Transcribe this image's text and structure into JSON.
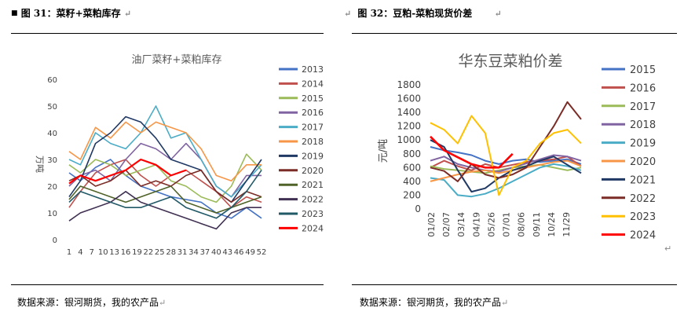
{
  "left_panel": {
    "heading": "图 31：菜籽+菜粕库存",
    "source": "数据来源：银河期货，我的农产品"
  },
  "right_panel": {
    "heading": "图 32：豆粕-菜粕现货价差",
    "source": "数据来源：银河期货，我的农产品"
  },
  "chart_data": [
    {
      "type": "line",
      "title": "油厂菜籽+菜粕库存",
      "ylabel": "万吨",
      "xlabel": "",
      "ylim": [
        0,
        60
      ],
      "yticks": [
        0,
        10,
        20,
        30,
        40,
        50,
        60
      ],
      "xtick_labels": [
        "1",
        "4",
        "7",
        "10",
        "13",
        "16",
        "19",
        "22",
        "25",
        "28",
        "31",
        "34",
        "37",
        "40",
        "43",
        "46",
        "49",
        "52"
      ],
      "legend_position": "right",
      "series": [
        {
          "name": "2013",
          "color": "#4472C4",
          "weeks": [
            1,
            4,
            8,
            12,
            16,
            20,
            24,
            28,
            32,
            36,
            40,
            44,
            48,
            52
          ],
          "values": [
            25,
            22,
            27,
            30,
            24,
            20,
            18,
            16,
            15,
            14,
            10,
            8,
            12,
            8
          ]
        },
        {
          "name": "2014",
          "color": "#C0504D",
          "weeks": [
            1,
            4,
            8,
            12,
            16,
            20,
            24,
            28,
            32,
            36,
            40,
            44,
            48,
            52
          ],
          "values": [
            12,
            18,
            25,
            28,
            30,
            24,
            20,
            24,
            26,
            22,
            18,
            12,
            16,
            14
          ]
        },
        {
          "name": "2015",
          "color": "#9BBB59",
          "weeks": [
            1,
            4,
            8,
            12,
            16,
            20,
            24,
            28,
            32,
            36,
            40,
            44,
            48,
            52
          ],
          "values": [
            28,
            25,
            30,
            28,
            24,
            26,
            28,
            22,
            20,
            16,
            14,
            20,
            32,
            26
          ]
        },
        {
          "name": "2016",
          "color": "#8064A2",
          "weeks": [
            1,
            4,
            8,
            12,
            16,
            20,
            24,
            28,
            32,
            36,
            40,
            44,
            48,
            52
          ],
          "values": [
            20,
            24,
            26,
            22,
            30,
            36,
            34,
            30,
            36,
            30,
            20,
            16,
            24,
            24
          ]
        },
        {
          "name": "2017",
          "color": "#4BACC6",
          "weeks": [
            1,
            4,
            8,
            12,
            16,
            20,
            24,
            28,
            32,
            36,
            40,
            44,
            48,
            52
          ],
          "values": [
            30,
            28,
            40,
            36,
            34,
            40,
            50,
            38,
            40,
            30,
            20,
            16,
            22,
            28
          ]
        },
        {
          "name": "2018",
          "color": "#F79646",
          "weeks": [
            1,
            4,
            8,
            12,
            16,
            20,
            24,
            28,
            32,
            36,
            40,
            44,
            48,
            52
          ],
          "values": [
            33,
            30,
            42,
            38,
            44,
            40,
            44,
            42,
            40,
            34,
            24,
            22,
            28,
            28
          ]
        },
        {
          "name": "2019",
          "color": "#1F3864",
          "weeks": [
            1,
            4,
            8,
            12,
            16,
            20,
            24,
            28,
            32,
            36,
            40,
            44,
            48,
            52
          ],
          "values": [
            16,
            22,
            36,
            40,
            46,
            44,
            38,
            30,
            28,
            26,
            18,
            14,
            22,
            30
          ]
        },
        {
          "name": "2020",
          "color": "#7B2C26",
          "weeks": [
            1,
            4,
            8,
            12,
            16,
            20,
            24,
            28,
            32,
            36,
            40,
            44,
            48,
            52
          ],
          "values": [
            22,
            24,
            20,
            22,
            26,
            20,
            22,
            20,
            24,
            26,
            18,
            14,
            18,
            16
          ]
        },
        {
          "name": "2021",
          "color": "#4F6228",
          "weeks": [
            1,
            4,
            8,
            12,
            16,
            20,
            24,
            28,
            32,
            36,
            40,
            44,
            48,
            52
          ],
          "values": [
            15,
            20,
            18,
            16,
            14,
            16,
            18,
            20,
            14,
            12,
            10,
            12,
            14,
            16
          ]
        },
        {
          "name": "2022",
          "color": "#403152",
          "weeks": [
            1,
            4,
            8,
            12,
            16,
            20,
            24,
            28,
            32,
            36,
            40,
            44,
            48,
            52
          ],
          "values": [
            7,
            10,
            12,
            14,
            18,
            14,
            12,
            10,
            8,
            6,
            4,
            10,
            12,
            12
          ]
        },
        {
          "name": "2023",
          "color": "#215967",
          "weeks": [
            1,
            4,
            8,
            12,
            16,
            20,
            24,
            28,
            32,
            36,
            40,
            44,
            48,
            52
          ],
          "values": [
            14,
            18,
            16,
            14,
            12,
            12,
            14,
            16,
            12,
            10,
            8,
            12,
            18,
            26
          ]
        },
        {
          "name": "2024",
          "color": "#FF0000",
          "weeks": [
            1,
            4,
            8,
            12,
            16,
            20,
            24,
            28,
            32,
            36,
            40,
            44,
            48,
            52
          ],
          "values": [
            21,
            24,
            22,
            24,
            26,
            30,
            28,
            24,
            26,
            null,
            null,
            null,
            null,
            null
          ]
        }
      ]
    },
    {
      "type": "line",
      "title": "华东豆菜粕价差",
      "ylabel": "元/吨",
      "xlabel": "",
      "ylim": [
        0,
        1800
      ],
      "yticks": [
        0,
        200,
        400,
        600,
        800,
        1000,
        1200,
        1400,
        1600,
        1800
      ],
      "xtick_labels": [
        "01/02",
        "02/07",
        "03/14",
        "04/19",
        "05/26",
        "07/01",
        "08/06",
        "09/11",
        "10/24",
        "11/29"
      ],
      "legend_position": "right",
      "series": [
        {
          "name": "2015",
          "color": "#4472C4",
          "values": [
            900,
            850,
            820,
            780,
            700,
            650,
            700,
            720,
            680,
            700,
            720,
            650
          ]
        },
        {
          "name": "2016",
          "color": "#C0504D",
          "values": [
            600,
            700,
            620,
            560,
            650,
            600,
            640,
            680,
            700,
            720,
            760,
            620
          ]
        },
        {
          "name": "2017",
          "color": "#9BBB59",
          "values": [
            620,
            580,
            560,
            540,
            520,
            560,
            600,
            620,
            640,
            600,
            560,
            600
          ]
        },
        {
          "name": "2018",
          "color": "#8064A2",
          "values": [
            700,
            760,
            650,
            600,
            560,
            540,
            600,
            660,
            720,
            780,
            760,
            700
          ]
        },
        {
          "name": "2019",
          "color": "#4BACC6",
          "values": [
            450,
            420,
            200,
            180,
            220,
            300,
            400,
            500,
            600,
            650,
            620,
            560
          ]
        },
        {
          "name": "2020",
          "color": "#F79646",
          "values": [
            400,
            450,
            500,
            540,
            560,
            520,
            560,
            600,
            640,
            680,
            700,
            620
          ]
        },
        {
          "name": "2021",
          "color": "#1F3864",
          "values": [
            1000,
            900,
            560,
            250,
            300,
            450,
            560,
            620,
            700,
            760,
            640,
            520
          ]
        },
        {
          "name": "2022",
          "color": "#7B2C26",
          "values": [
            600,
            550,
            400,
            650,
            500,
            450,
            500,
            600,
            900,
            1200,
            1550,
            1300
          ]
        },
        {
          "name": "2023",
          "color": "#FFC000",
          "values": [
            1250,
            1150,
            950,
            1350,
            1100,
            200,
            600,
            700,
            950,
            1100,
            1150,
            950
          ]
        },
        {
          "name": "2024",
          "color": "#FF0000",
          "values": [
            1050,
            850,
            750,
            650,
            600,
            600,
            800,
            null,
            null,
            null,
            null,
            null
          ]
        }
      ]
    }
  ]
}
